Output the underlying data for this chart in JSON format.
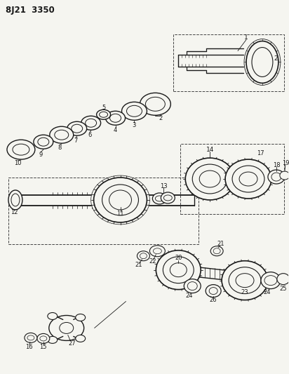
{
  "title": "8J21  3350",
  "bg_color": "#f5f5f0",
  "line_color": "#1a1a1a",
  "fig_width": 4.12,
  "fig_height": 5.33,
  "dpi": 100
}
